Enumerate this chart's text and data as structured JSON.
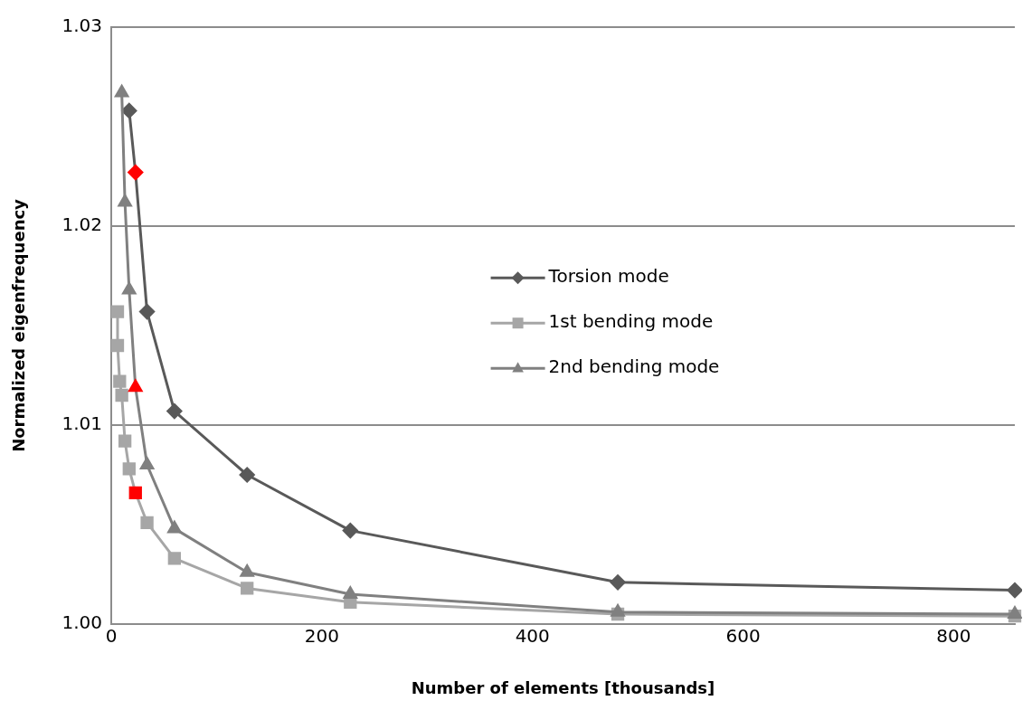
{
  "chart_data": {
    "type": "line",
    "xlabel": "Number of elements [thousands]",
    "ylabel": "Normalized eigenfrequency",
    "xlim": [
      0,
      858
    ],
    "xticks": [
      0,
      200,
      400,
      600,
      800
    ],
    "ylim": [
      1,
      1.03
    ],
    "yticks": [
      {
        "value": 1,
        "label": "1.00"
      },
      {
        "value": 1.01,
        "label": "1.01"
      },
      {
        "value": 1.02,
        "label": "1.02"
      },
      {
        "value": 1.03,
        "label": "1.03"
      }
    ],
    "grid": "y",
    "legend": "right",
    "series": [
      {
        "name": "Torsion mode",
        "color": "#595959",
        "marker": "diamond",
        "x": [
          17,
          23,
          34,
          60,
          129,
          227,
          481,
          858
        ],
        "values": [
          1.0258,
          1.0227,
          1.0157,
          1.0107,
          1.0075,
          1.0047,
          1.0021,
          1.0017
        ],
        "colors": [
          "#595959",
          "#ff0000",
          "#595959",
          "#595959",
          "#595959",
          "#595959",
          "#595959",
          "#595959"
        ]
      },
      {
        "name": "1st bending mode",
        "color": "#a6a6a6",
        "marker": "square",
        "x": [
          6,
          6,
          8,
          10,
          13,
          17,
          23,
          34,
          60,
          129,
          227,
          481,
          858
        ],
        "values": [
          1.0157,
          1.014,
          1.0122,
          1.0115,
          1.0092,
          1.0078,
          1.0066,
          1.0051,
          1.0033,
          1.0018,
          1.0011,
          1.0005,
          1.0004
        ],
        "colors": [
          "#a6a6a6",
          "#a6a6a6",
          "#a6a6a6",
          "#a6a6a6",
          "#a6a6a6",
          "#a6a6a6",
          "#ff0000",
          "#a6a6a6",
          "#a6a6a6",
          "#a6a6a6",
          "#a6a6a6",
          "#a6a6a6",
          "#a6a6a6"
        ]
      },
      {
        "name": "2nd bending mode",
        "color": "#808080",
        "marker": "triangle",
        "x": [
          10,
          13,
          17,
          23,
          34,
          60,
          129,
          227,
          481,
          858
        ],
        "values": [
          1.0267,
          1.0212,
          1.0168,
          1.0119,
          1.008,
          1.0048,
          1.0026,
          1.0015,
          1.0006,
          1.0005
        ],
        "colors": [
          "#808080",
          "#808080",
          "#808080",
          "#ff0000",
          "#808080",
          "#808080",
          "#808080",
          "#808080",
          "#808080",
          "#808080"
        ]
      }
    ]
  }
}
